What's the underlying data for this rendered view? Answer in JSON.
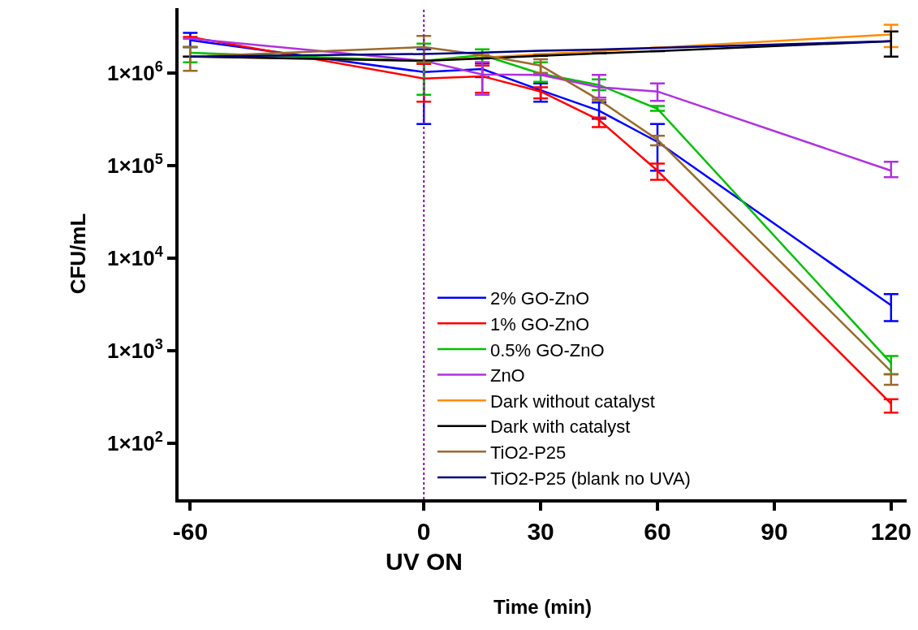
{
  "chart_data": {
    "type": "line",
    "xlabel": "Time (min)",
    "ylabel": "CFU/mL",
    "x": [
      -60,
      0,
      15,
      30,
      45,
      60,
      120
    ],
    "xlim": [
      -63,
      124
    ],
    "xticks": [
      -60,
      0,
      30,
      60,
      90,
      120
    ],
    "ylim": [
      25,
      5000000
    ],
    "yticks": [
      {
        "value": 100,
        "label": "1×10$^{2}$"
      },
      {
        "value": 1000,
        "label": "1×10$^{3}$"
      },
      {
        "value": 10000,
        "label": "1×10$^{4}$"
      },
      {
        "value": 100000,
        "label": "1×10$^{5}$"
      },
      {
        "value": 1000000,
        "label": "1×10$^{6}$"
      }
    ],
    "log": "y",
    "grid": false,
    "legend": "bottom left",
    "marker": "none",
    "line_style": "solid",
    "ref_lines": [
      {
        "axis": "x",
        "value": 0,
        "label": "UV ON",
        "color": "#8010b0",
        "line_style": "dotted"
      }
    ],
    "series": [
      {
        "name": "2% GO-ZnO",
        "color": "#0000ff",
        "values": [
          2250000,
          1020000,
          1100000,
          650000,
          390000,
          180000,
          3100
        ],
        "errors": [
          [
            1900000,
            2700000
          ],
          [
            280000,
            1800000
          ],
          [
            900000,
            1270000
          ],
          [
            490000,
            770000
          ],
          [
            320000,
            480000
          ],
          [
            88000,
            280000
          ],
          [
            2100,
            4100
          ]
        ]
      },
      {
        "name": "1% GO-ZnO",
        "color": "#ff0000",
        "values": [
          2440000,
          870000,
          920000,
          630000,
          310000,
          88000,
          270
        ],
        "errors": [
          null,
          [
            490000,
            1250000
          ],
          [
            610000,
            1200000
          ],
          [
            530000,
            700000
          ],
          [
            260000,
            330000
          ],
          [
            70000,
            105000
          ],
          [
            215,
            300
          ]
        ]
      },
      {
        "name": "0.5% GO-ZnO",
        "color": "#00c000",
        "values": [
          1650000,
          1350000,
          1560000,
          980000,
          740000,
          410000,
          740
        ],
        "errors": [
          [
            1300000,
            1900000
          ],
          [
            580000,
            2070000
          ],
          [
            1300000,
            1800000
          ],
          [
            800000,
            1300000
          ],
          [
            650000,
            850000
          ],
          [
            390000,
            440000
          ],
          [
            560,
            880
          ]
        ]
      },
      {
        "name": "ZnO",
        "color": "#b030e0",
        "values": [
          2340000,
          1350000,
          960000,
          950000,
          700000,
          630000,
          88000
        ],
        "errors": [
          null,
          null,
          [
            580000,
            1300000
          ],
          null,
          [
            540000,
            950000
          ],
          [
            500000,
            770000
          ],
          [
            75000,
            110000
          ]
        ]
      },
      {
        "name": "Dark without catalyst",
        "color": "#ff8c00",
        "values": [
          1500000,
          1350000,
          1460000,
          1590000,
          1720000,
          1870000,
          2600000
        ],
        "errors": [
          null,
          null,
          null,
          null,
          null,
          null,
          [
            1900000,
            3300000
          ]
        ]
      },
      {
        "name": "Dark with catalyst",
        "color": "#000000",
        "values": [
          1500000,
          1350000,
          1430000,
          1530000,
          1620000,
          1720000,
          2200000
        ],
        "errors": [
          null,
          null,
          null,
          null,
          null,
          null,
          [
            1500000,
            2800000
          ]
        ]
      },
      {
        "name": "TiO2-P25",
        "color": "#9a6a2a",
        "values": [
          1500000,
          1900000,
          1560000,
          1200000,
          510000,
          190000,
          600
        ],
        "errors": [
          [
            1050000,
            1900000
          ],
          [
            1300000,
            2500000
          ],
          null,
          [
            1000000,
            1400000
          ],
          null,
          [
            165000,
            210000
          ],
          [
            430,
            560
          ]
        ]
      },
      {
        "name": "TiO2-P25 (blank no UVA)",
        "color": "#000080",
        "values": [
          1500000,
          1600000,
          1660000,
          1730000,
          1790000,
          1860000,
          2200000
        ]
      }
    ]
  }
}
